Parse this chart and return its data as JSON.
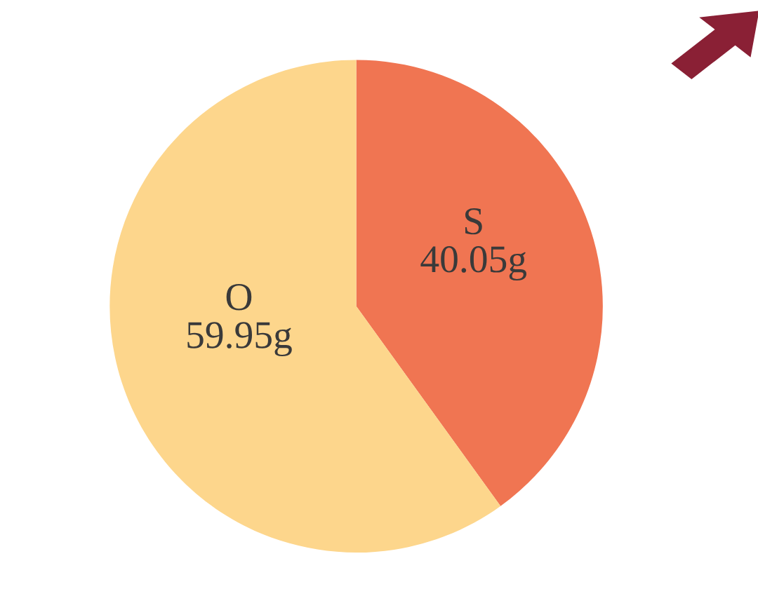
{
  "chart_data": {
    "type": "pie",
    "categories": [
      "S",
      "O"
    ],
    "values": [
      40.05,
      59.95
    ],
    "colors": [
      "#f07552",
      "#fdd68c"
    ],
    "value_labels": [
      "40.05g",
      "59.95g"
    ]
  }
}
